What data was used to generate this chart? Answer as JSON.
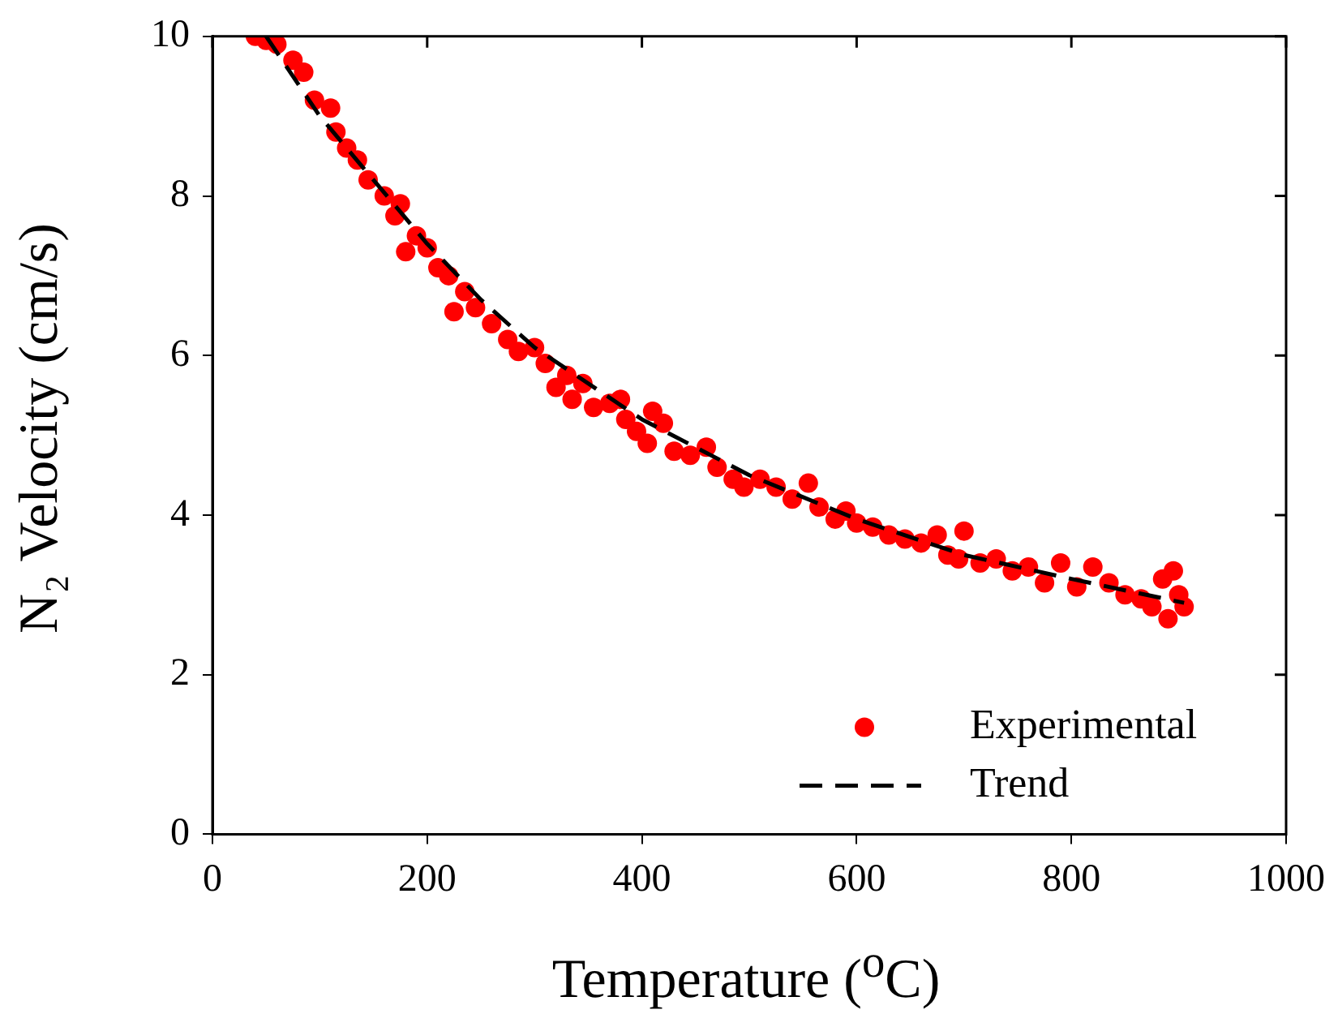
{
  "chart_data": {
    "type": "scatter",
    "xlabel": "Temperature ($^{o}$C)",
    "ylabel": "N₂ Velocity (cm/s)",
    "xlim": [
      0,
      1000
    ],
    "xticks": [
      0,
      200,
      400,
      600,
      800,
      1000
    ],
    "ylim": [
      0,
      10
    ],
    "yticks": [
      0,
      2,
      4,
      6,
      8,
      10
    ],
    "grid": false,
    "legend": "bottom right",
    "series": [
      {
        "name": "Experimental",
        "marker": "circle",
        "color": "#ff0000",
        "x": [
          40,
          50,
          60,
          75,
          85,
          95,
          110,
          115,
          125,
          135,
          145,
          160,
          170,
          175,
          180,
          190,
          200,
          210,
          220,
          225,
          235,
          245,
          260,
          275,
          285,
          300,
          310,
          320,
          330,
          335,
          345,
          355,
          370,
          380,
          385,
          395,
          405,
          410,
          420,
          430,
          445,
          460,
          470,
          485,
          495,
          510,
          525,
          540,
          555,
          565,
          580,
          590,
          600,
          615,
          630,
          645,
          660,
          675,
          685,
          695,
          700,
          715,
          730,
          745,
          760,
          775,
          790,
          805,
          820,
          835,
          850,
          865,
          875,
          885,
          890,
          895,
          900,
          905
        ],
        "values": [
          10.0,
          9.95,
          9.9,
          9.7,
          9.55,
          9.2,
          9.1,
          8.8,
          8.6,
          8.45,
          8.2,
          8.0,
          7.75,
          7.9,
          7.3,
          7.5,
          7.35,
          7.1,
          7.0,
          6.55,
          6.8,
          6.6,
          6.4,
          6.2,
          6.05,
          6.1,
          5.9,
          5.6,
          5.75,
          5.45,
          5.65,
          5.35,
          5.4,
          5.45,
          5.2,
          5.05,
          4.9,
          5.3,
          5.15,
          4.8,
          4.75,
          4.85,
          4.6,
          4.45,
          4.35,
          4.45,
          4.35,
          4.2,
          4.4,
          4.1,
          3.95,
          4.05,
          3.9,
          3.85,
          3.75,
          3.7,
          3.65,
          3.75,
          3.5,
          3.45,
          3.8,
          3.4,
          3.45,
          3.3,
          3.35,
          3.15,
          3.4,
          3.1,
          3.35,
          3.15,
          3.0,
          2.95,
          2.85,
          3.2,
          2.7,
          3.3,
          3.0,
          2.85
        ]
      },
      {
        "name": "Trend",
        "type": "line",
        "marker": "none",
        "line_style": "dashed",
        "color": "#000000",
        "x": [
          50,
          100,
          150,
          200,
          250,
          300,
          400,
          500,
          600,
          700,
          800,
          905
        ],
        "values": [
          10.0,
          9.0,
          8.2,
          7.4,
          6.7,
          6.1,
          5.2,
          4.5,
          3.95,
          3.5,
          3.2,
          2.9
        ]
      }
    ]
  }
}
